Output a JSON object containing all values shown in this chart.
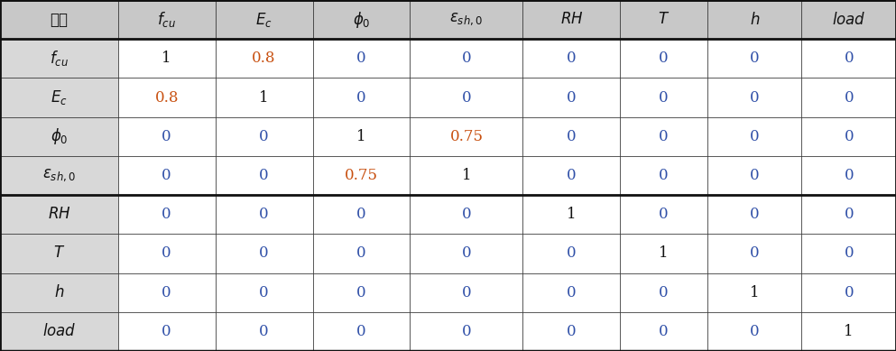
{
  "table_data": [
    [
      "1",
      "0.8",
      "0",
      "0",
      "0",
      "0",
      "0",
      "0"
    ],
    [
      "0.8",
      "1",
      "0",
      "0",
      "0",
      "0",
      "0",
      "0"
    ],
    [
      "0",
      "0",
      "1",
      "0.75",
      "0",
      "0",
      "0",
      "0"
    ],
    [
      "0",
      "0",
      "0.75",
      "1",
      "0",
      "0",
      "0",
      "0"
    ],
    [
      "0",
      "0",
      "0",
      "0",
      "1",
      "0",
      "0",
      "0"
    ],
    [
      "0",
      "0",
      "0",
      "0",
      "0",
      "1",
      "0",
      "0"
    ],
    [
      "0",
      "0",
      "0",
      "0",
      "0",
      "0",
      "1",
      "0"
    ],
    [
      "0",
      "0",
      "0",
      "0",
      "0",
      "0",
      "0",
      "1"
    ]
  ],
  "header_bg": "#c8c8c8",
  "row_label_bg": "#d8d8d8",
  "white_bg": "#ffffff",
  "header_text_color": "#111111",
  "diagonal_color": "#111111",
  "nonzero_color": "#c85010",
  "zero_color": "#3050a8",
  "border_color": "#111111",
  "figsize": [
    9.93,
    3.89
  ],
  "dpi": 100,
  "fontsize": 12,
  "header_fontsize": 12,
  "col_widths_raw": [
    1.15,
    0.95,
    0.95,
    0.95,
    1.1,
    0.95,
    0.85,
    0.92,
    0.92
  ],
  "row_heights_raw": [
    1.0,
    1.0,
    1.0,
    1.0,
    1.0,
    1.0,
    1.0,
    1.0,
    1.0
  ]
}
